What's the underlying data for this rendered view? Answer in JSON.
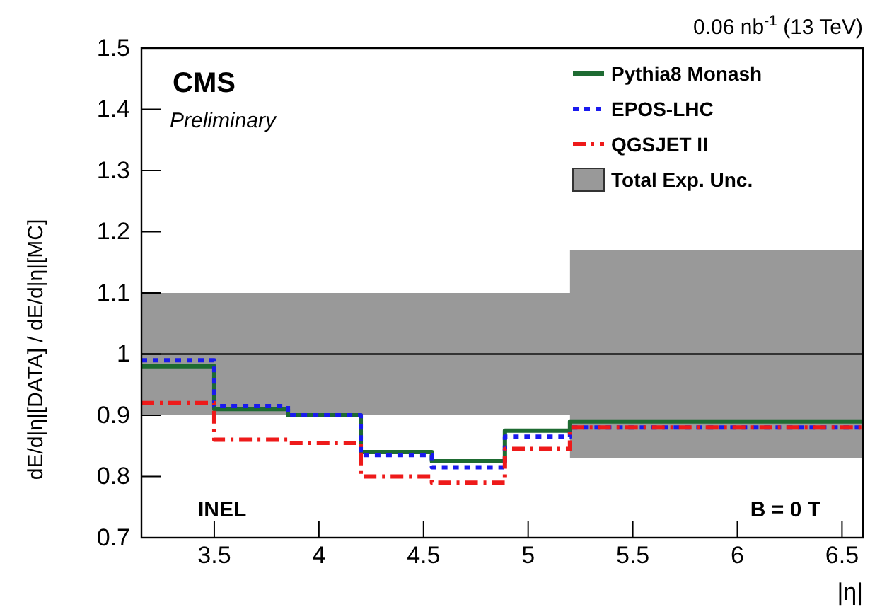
{
  "chart_data": {
    "type": "step",
    "xlabel": "|η|",
    "ylabel": "dE/d|η|[DATA] / dE/d|η|[MC]",
    "x": [
      3.152,
      3.5,
      3.852,
      4.2,
      4.54,
      4.889,
      5.2,
      6.6
    ],
    "xlim": [
      3.152,
      6.6
    ],
    "xticks": [
      3.5,
      4,
      4.5,
      5,
      5.5,
      6,
      6.5
    ],
    "ylim": [
      0.7,
      1.5
    ],
    "yticks": [
      0.7,
      0.8,
      0.9,
      1,
      1.1,
      1.2,
      1.3,
      1.4,
      1.5
    ],
    "series": [
      {
        "name": "Total Exp. Unc.",
        "type": "area",
        "color": "#999999",
        "values": [
          null,
          null,
          null,
          null,
          null,
          null,
          null,
          null
        ],
        "lower": [
          0.9,
          0.9,
          0.9,
          0.9,
          0.9,
          0.9,
          0.83,
          0.83
        ],
        "upper": [
          1.1,
          1.1,
          1.1,
          1.1,
          1.1,
          1.1,
          1.17,
          1.17
        ]
      },
      {
        "name": "Pythia8 Monash",
        "color": "#1e6b32",
        "line_style": "solid",
        "values": [
          0.98,
          0.91,
          0.9,
          0.84,
          0.825,
          0.875,
          0.89,
          0.89
        ]
      },
      {
        "name": "EPOS-LHC",
        "color": "#1a1aee",
        "line_style": "dotted",
        "values": [
          0.99,
          0.915,
          0.9,
          0.835,
          0.815,
          0.865,
          0.88,
          0.88
        ]
      },
      {
        "name": "QGSJET II",
        "color": "#ee1a1a",
        "line_style": "dashed",
        "values": [
          0.92,
          0.86,
          0.855,
          0.8,
          0.79,
          0.845,
          0.88,
          0.88
        ]
      }
    ],
    "ref_lines": [
      {
        "axis": "y",
        "value": 1,
        "color": "#333333"
      }
    ],
    "legend": "top right",
    "annotations": [
      "0.06 nb$^{-1}$ (13 TeV)",
      "CMS",
      "Preliminary",
      "INEL",
      "B = 0 T"
    ]
  }
}
